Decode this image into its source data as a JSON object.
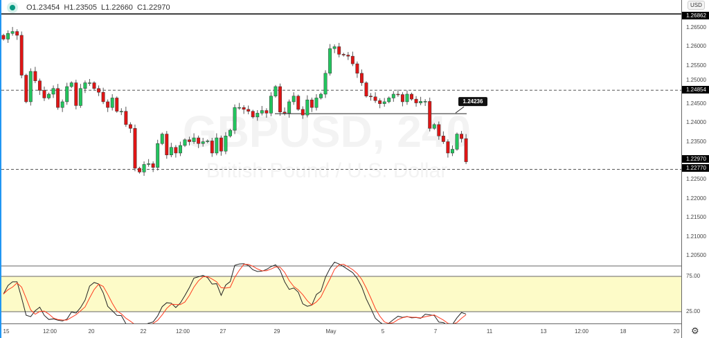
{
  "legend": {
    "open": "O1.23454",
    "high": "H1.23505",
    "low": "L1.22660",
    "close": "C1.22970"
  },
  "watermark": {
    "symbol": "GBPUSD, 240",
    "description": "British Pound / U.S. Dollar"
  },
  "price_axis": {
    "currency": "USD",
    "labels": [
      "1.26500",
      "1.26000",
      "1.25500",
      "1.25000",
      "1.24500",
      "1.24000",
      "1.23500",
      "1.22500",
      "1.22000",
      "1.21500",
      "1.21000",
      "1.20500"
    ],
    "tags": [
      "1.26862",
      "1.24854",
      "1.22970",
      "1.22770"
    ]
  },
  "stoch_axis": {
    "labels": [
      "75.00",
      "25.00"
    ]
  },
  "time_axis": {
    "labels": [
      "15",
      "12:00",
      "20",
      "22",
      "12:00",
      "27",
      "29",
      "May",
      "5",
      "7",
      "11",
      "13",
      "12:00",
      "18",
      "20"
    ]
  },
  "drawing": {
    "label": "1.24236",
    "price": 1.24236
  },
  "levels": {
    "top": 1.26862,
    "resistance": 1.24854,
    "support": 1.2277
  },
  "colors": {
    "up": "#22c55e",
    "down": "#e01515",
    "stoch_band": "#fdfbc8",
    "k": "#222222",
    "d": "#ff3b1f"
  },
  "chart_data": {
    "type": "candlestick",
    "symbol": "GBPUSD",
    "timeframe": "240",
    "ylim": [
      1.2025,
      1.27
    ],
    "closes": [
      1.262,
      1.2635,
      1.264,
      1.263,
      1.2525,
      1.2455,
      1.2535,
      1.251,
      1.2485,
      1.2465,
      1.2475,
      1.249,
      1.244,
      1.2455,
      1.2495,
      1.2505,
      1.2445,
      1.249,
      1.2505,
      1.2505,
      1.249,
      1.248,
      1.2455,
      1.244,
      1.2465,
      1.243,
      1.243,
      1.2395,
      1.2385,
      1.228,
      1.227,
      1.229,
      1.2292,
      1.2282,
      1.2345,
      1.237,
      1.2315,
      1.2335,
      1.232,
      1.234,
      1.2355,
      1.235,
      1.236,
      1.2345,
      1.235,
      1.2352,
      1.232,
      1.236,
      1.2325,
      1.2365,
      1.238,
      1.244,
      1.244,
      1.2435,
      1.243,
      1.2415,
      1.2425,
      1.2432,
      1.2425,
      1.247,
      1.2495,
      1.2428,
      1.2425,
      1.2455,
      1.247,
      1.2435,
      1.242,
      1.246,
      1.244,
      1.2465,
      1.2475,
      1.253,
      1.2595,
      1.26,
      1.258,
      1.2578,
      1.2575,
      1.2555,
      1.253,
      1.2505,
      1.247,
      1.2468,
      1.2458,
      1.245,
      1.2455,
      1.2465,
      1.2475,
      1.2474,
      1.2455,
      1.2475,
      1.2462,
      1.2452,
      1.2456,
      1.2456,
      1.2385,
      1.2395,
      1.2365,
      1.235,
      1.232,
      1.233,
      1.237,
      1.2358,
      1.2297
    ]
  }
}
